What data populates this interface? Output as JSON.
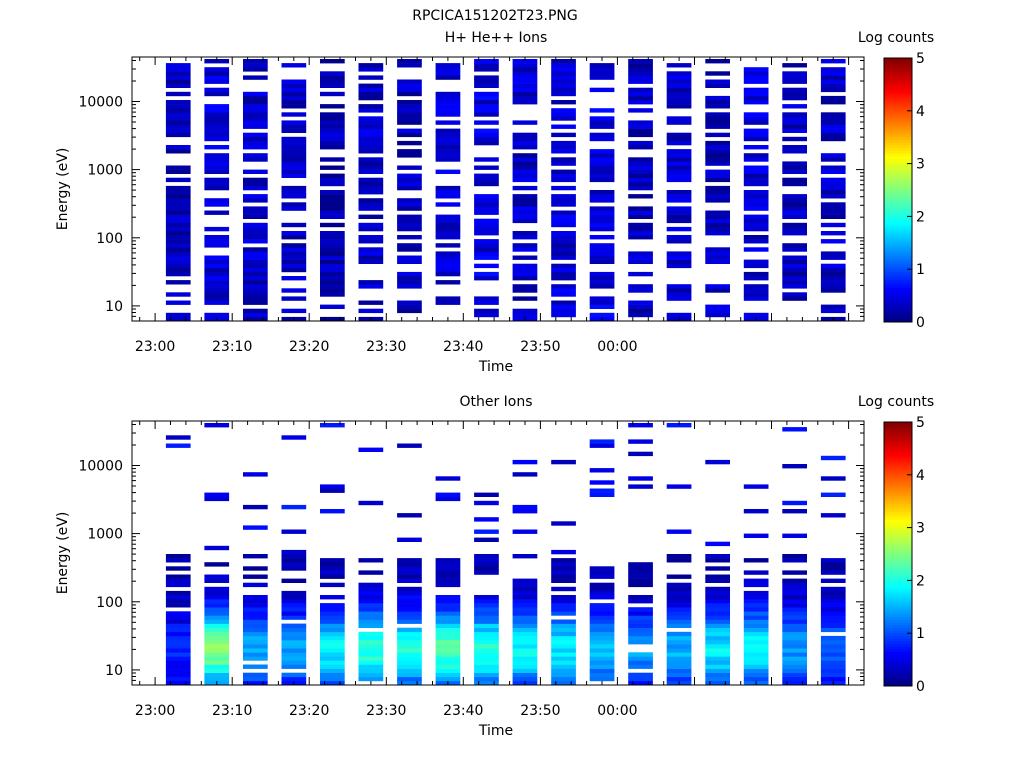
{
  "figure_title": "RPCICA151202T23.PNG",
  "chart_data": [
    {
      "type": "heatmap",
      "title": "H+ He++ Ions",
      "xlabel": "Time",
      "ylabel": "Energy (eV)",
      "x_ticks": [
        "23:00",
        "23:10",
        "23:20",
        "23:30",
        "23:40",
        "23:50",
        "00:00"
      ],
      "y_ticks": [
        "10",
        "100",
        "1000",
        "10000"
      ],
      "y_scale": "log",
      "ylim": [
        6,
        45000
      ],
      "colorbar": {
        "label": "Log counts",
        "ticks": [
          "0",
          "1",
          "2",
          "3",
          "4",
          "5"
        ],
        "range": [
          0,
          5
        ]
      },
      "time_bins_min": [
        3,
        8,
        13,
        18,
        23,
        28,
        33,
        38,
        43,
        48,
        53,
        58,
        63,
        68,
        73,
        78,
        83,
        88
      ],
      "time_bin_width_min": 3.2,
      "energy_range_eV": [
        6,
        42000
      ],
      "energy_channels": 96,
      "approx_log_counts_per_bin": [
        0.3,
        0.4,
        0.35,
        0.3,
        0.25,
        0.35,
        0.3,
        0.4,
        0.45,
        0.35,
        0.4,
        0.45,
        0.3,
        0.35,
        0.3,
        0.4,
        0.3,
        0.35
      ],
      "grid": false
    },
    {
      "type": "heatmap",
      "title": "Other Ions",
      "xlabel": "Time",
      "ylabel": "Energy (eV)",
      "x_ticks": [
        "23:00",
        "23:10",
        "23:20",
        "23:30",
        "23:40",
        "23:50",
        "00:00"
      ],
      "y_ticks": [
        "10",
        "100",
        "1000",
        "10000"
      ],
      "y_scale": "log",
      "ylim": [
        6,
        45000
      ],
      "colorbar": {
        "label": "Log counts",
        "ticks": [
          "0",
          "1",
          "2",
          "3",
          "4",
          "5"
        ],
        "range": [
          0,
          5
        ]
      },
      "time_bins_min": [
        3,
        8,
        13,
        18,
        23,
        28,
        33,
        38,
        43,
        48,
        53,
        58,
        63,
        68,
        73,
        78,
        83,
        88
      ],
      "time_bin_width_min": 3.2,
      "energy_range_eV": [
        6,
        42000
      ],
      "peak_energy_eV": 20,
      "approx_peak_log_counts": [
        0.6,
        2.3,
        1.3,
        1.2,
        1.6,
        1.9,
        1.8,
        2.1,
        1.9,
        1.7,
        1.6,
        1.4,
        1.2,
        1.3,
        1.6,
        1.7,
        1.2,
        0.9
      ],
      "grid": false
    }
  ]
}
